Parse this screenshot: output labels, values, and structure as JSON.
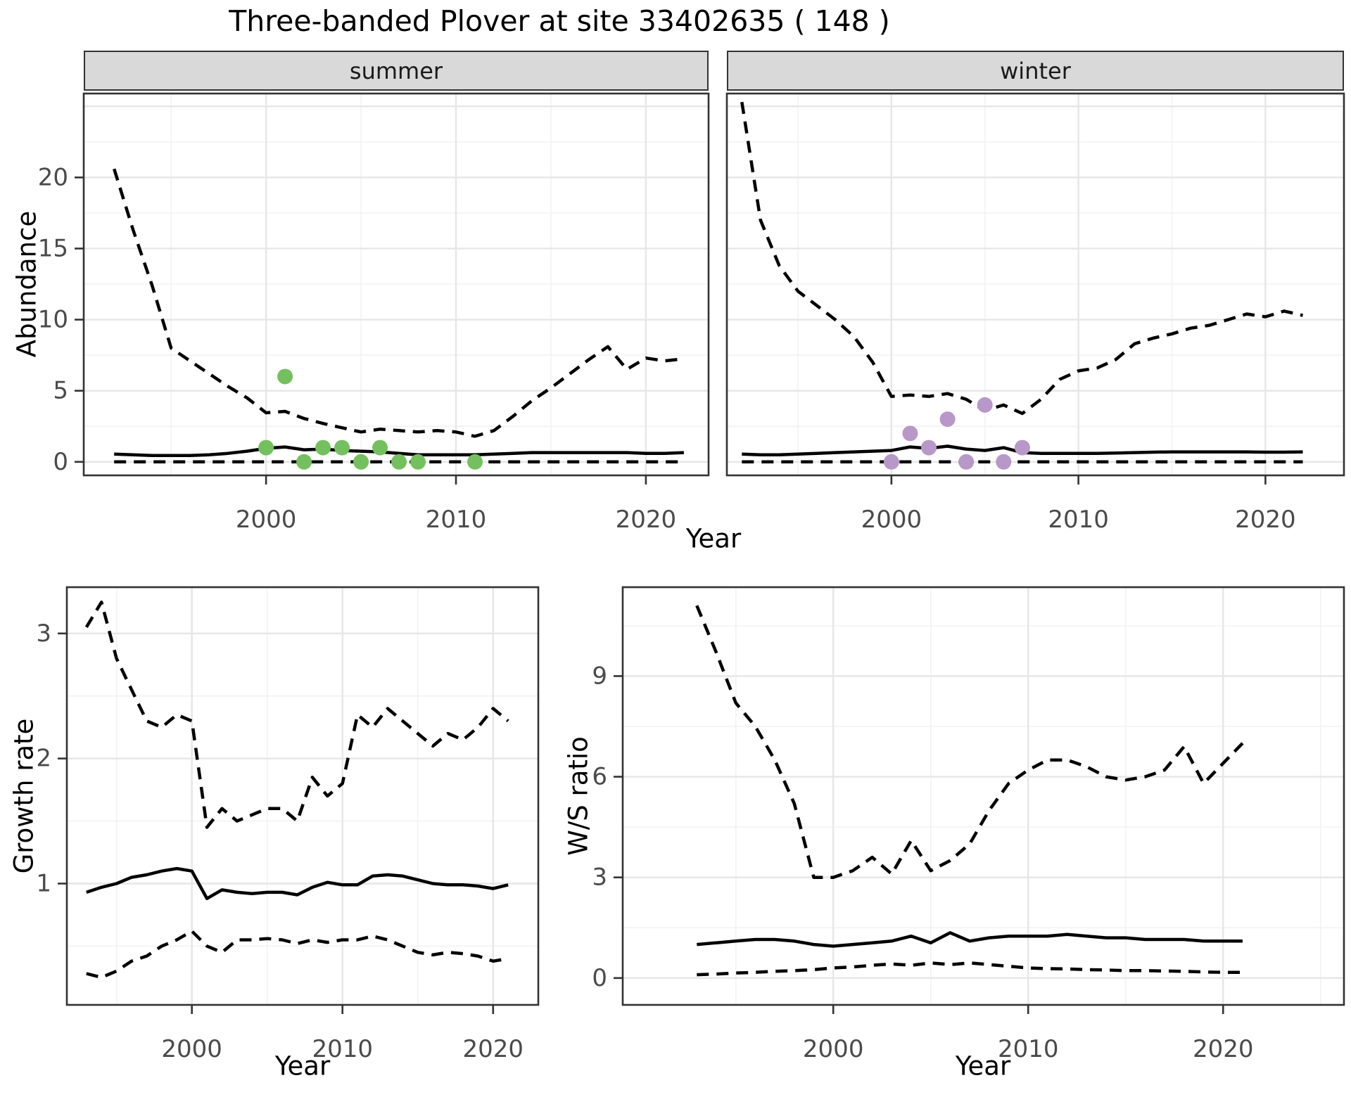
{
  "title": "Three-banded Plover at site 33402635 ( 148 )",
  "facets": {
    "summer": {
      "label": "summer"
    },
    "winter": {
      "label": "winter"
    }
  },
  "axis_titles": {
    "abundance": "Abundance",
    "year_top": "Year",
    "growth_rate": "Growth rate",
    "year_bottom_left": "Year",
    "ws_ratio": "W/S ratio",
    "year_bottom_right": "Year"
  },
  "colors": {
    "summer_points": "#75c05e",
    "winter_points": "#b897c9",
    "line": "#000000",
    "strip_bg": "#d9d9d9",
    "panel_border": "#333333",
    "grid_major": "#e6e6e6",
    "grid_minor": "#f2f2f2",
    "tick_text": "#4a4a4a"
  },
  "chart_data": [
    {
      "id": "abundance-summer",
      "type": "line",
      "facet_label": "summer",
      "title": "",
      "xlabel": "Year",
      "ylabel": "Abundance",
      "xlim": [
        1990.4,
        2023.3
      ],
      "ylim": [
        -0.95,
        25.9
      ],
      "x_ticks": [
        2000,
        2010,
        2020
      ],
      "x_minor": [
        1995,
        2005,
        2015
      ],
      "y_ticks": [
        0,
        5,
        10,
        15,
        20
      ],
      "y_major_extra": [
        25
      ],
      "y_minor": [
        2.5,
        7.5,
        12.5,
        17.5,
        22.5
      ],
      "x": [
        1992,
        1993,
        1994,
        1995,
        1996,
        1997,
        1998,
        1999,
        2000,
        2001,
        2002,
        2003,
        2004,
        2005,
        2006,
        2007,
        2008,
        2009,
        2010,
        2011,
        2012,
        2013,
        2014,
        2015,
        2016,
        2017,
        2018,
        2019,
        2020,
        2021,
        2022
      ],
      "series": [
        {
          "name": "upper-95ci",
          "style": "dashed",
          "values": [
            20.6,
            16.3,
            12.4,
            8.0,
            7.1,
            6.2,
            5.3,
            4.5,
            3.45,
            3.55,
            3.05,
            2.7,
            2.4,
            2.1,
            2.3,
            2.2,
            2.1,
            2.2,
            2.1,
            1.8,
            2.2,
            3.2,
            4.3,
            5.2,
            6.2,
            7.2,
            8.1,
            6.5,
            7.3,
            7.1,
            7.25
          ]
        },
        {
          "name": "median",
          "style": "solid",
          "values": [
            0.55,
            0.5,
            0.45,
            0.45,
            0.45,
            0.5,
            0.6,
            0.75,
            0.95,
            1.05,
            0.85,
            0.9,
            0.8,
            0.75,
            0.7,
            0.6,
            0.5,
            0.5,
            0.5,
            0.5,
            0.55,
            0.6,
            0.65,
            0.65,
            0.65,
            0.65,
            0.65,
            0.65,
            0.6,
            0.6,
            0.65
          ]
        },
        {
          "name": "lower-95ci",
          "style": "dashed",
          "values": [
            0,
            0,
            0,
            0,
            0,
            0,
            0,
            0,
            0,
            0,
            0,
            0,
            0,
            0,
            0,
            0,
            0,
            0,
            0,
            0,
            0,
            0,
            0,
            0,
            0,
            0,
            0,
            0,
            0,
            0,
            0
          ]
        }
      ],
      "points": {
        "name": "observed-counts",
        "color": "#75c05e",
        "data": [
          [
            2000,
            1
          ],
          [
            2001,
            6
          ],
          [
            2002,
            0
          ],
          [
            2003,
            1
          ],
          [
            2004,
            1
          ],
          [
            2005,
            0
          ],
          [
            2006,
            1
          ],
          [
            2007,
            0
          ],
          [
            2008,
            0
          ],
          [
            2011,
            0
          ]
        ]
      }
    },
    {
      "id": "abundance-winter",
      "type": "line",
      "facet_label": "winter",
      "title": "",
      "xlabel": "Year",
      "ylabel": "Abundance",
      "xlim": [
        1991.2,
        2024.2
      ],
      "ylim": [
        -0.95,
        25.9
      ],
      "x_ticks": [
        2000,
        2010,
        2020
      ],
      "x_minor": [
        1995,
        2005,
        2015
      ],
      "y_ticks": [
        0,
        5,
        10,
        15,
        20
      ],
      "y_major_extra": [
        25
      ],
      "y_minor": [
        2.5,
        7.5,
        12.5,
        17.5,
        22.5
      ],
      "y_labels_shown": false,
      "x": [
        1992,
        1993,
        1994,
        1995,
        1996,
        1997,
        1998,
        1999,
        2000,
        2001,
        2002,
        2003,
        2004,
        2005,
        2006,
        2007,
        2008,
        2009,
        2010,
        2011,
        2012,
        2013,
        2014,
        2015,
        2016,
        2017,
        2018,
        2019,
        2020,
        2021,
        2022
      ],
      "series": [
        {
          "name": "upper-95ci",
          "style": "dashed",
          "values": [
            25.3,
            17.0,
            13.8,
            12.0,
            11.0,
            10.0,
            8.8,
            7.0,
            4.6,
            4.7,
            4.6,
            4.8,
            4.4,
            3.6,
            4.0,
            3.4,
            4.4,
            5.8,
            6.4,
            6.6,
            7.2,
            8.3,
            8.7,
            9.0,
            9.4,
            9.6,
            10.0,
            10.4,
            10.2,
            10.6,
            10.3
          ]
        },
        {
          "name": "median",
          "style": "solid",
          "values": [
            0.55,
            0.5,
            0.5,
            0.55,
            0.6,
            0.65,
            0.7,
            0.75,
            0.8,
            1.05,
            0.95,
            1.1,
            0.9,
            0.8,
            1.0,
            0.65,
            0.6,
            0.6,
            0.6,
            0.6,
            0.62,
            0.65,
            0.68,
            0.7,
            0.7,
            0.7,
            0.7,
            0.7,
            0.68,
            0.68,
            0.7
          ]
        },
        {
          "name": "lower-95ci",
          "style": "dashed",
          "values": [
            0,
            0,
            0,
            0,
            0,
            0,
            0,
            0,
            0,
            0,
            0,
            0,
            0,
            0,
            0,
            0,
            0,
            0,
            0,
            0,
            0,
            0,
            0,
            0,
            0,
            0,
            0,
            0,
            0,
            0,
            0
          ]
        }
      ],
      "points": {
        "name": "observed-counts",
        "color": "#b897c9",
        "data": [
          [
            2000,
            0
          ],
          [
            2001,
            2
          ],
          [
            2002,
            1
          ],
          [
            2003,
            3
          ],
          [
            2004,
            0
          ],
          [
            2005,
            4
          ],
          [
            2006,
            0
          ],
          [
            2007,
            1
          ]
        ]
      }
    },
    {
      "id": "growth-rate",
      "type": "line",
      "facet_label": "",
      "title": "",
      "xlabel": "Year",
      "ylabel": "Growth rate",
      "xlim": [
        1991.7,
        2023.0
      ],
      "ylim": [
        0.03,
        3.37
      ],
      "x_ticks": [
        2000,
        2010,
        2020
      ],
      "x_minor": [
        1995,
        2005,
        2015
      ],
      "y_ticks": [
        1,
        2,
        3
      ],
      "y_major_extra": [],
      "y_minor": [
        0.5,
        1.5,
        2.5
      ],
      "x": [
        1993,
        1994,
        1995,
        1996,
        1997,
        1998,
        1999,
        2000,
        2001,
        2002,
        2003,
        2004,
        2005,
        2006,
        2007,
        2008,
        2009,
        2010,
        2011,
        2012,
        2013,
        2014,
        2015,
        2016,
        2017,
        2018,
        2019,
        2020,
        2021
      ],
      "series": [
        {
          "name": "upper-95ci",
          "style": "dashed",
          "values": [
            3.05,
            3.25,
            2.8,
            2.55,
            2.3,
            2.25,
            2.35,
            2.3,
            1.45,
            1.6,
            1.5,
            1.55,
            1.6,
            1.6,
            1.5,
            1.85,
            1.7,
            1.8,
            2.35,
            2.25,
            2.4,
            2.3,
            2.2,
            2.1,
            2.2,
            2.15,
            2.25,
            2.4,
            2.3
          ]
        },
        {
          "name": "median",
          "style": "solid",
          "values": [
            0.93,
            0.97,
            1.0,
            1.05,
            1.07,
            1.1,
            1.12,
            1.1,
            0.88,
            0.95,
            0.93,
            0.92,
            0.93,
            0.93,
            0.91,
            0.97,
            1.01,
            0.99,
            0.99,
            1.06,
            1.07,
            1.06,
            1.03,
            1.0,
            0.99,
            0.99,
            0.98,
            0.96,
            0.99
          ]
        },
        {
          "name": "lower-95ci",
          "style": "dashed",
          "values": [
            0.28,
            0.25,
            0.3,
            0.38,
            0.42,
            0.5,
            0.55,
            0.62,
            0.5,
            0.45,
            0.55,
            0.55,
            0.56,
            0.55,
            0.52,
            0.55,
            0.53,
            0.55,
            0.55,
            0.58,
            0.55,
            0.5,
            0.45,
            0.43,
            0.45,
            0.44,
            0.42,
            0.38,
            0.4
          ]
        }
      ],
      "points": null
    },
    {
      "id": "ws-ratio",
      "type": "line",
      "facet_label": "",
      "title": "",
      "xlabel": "Year",
      "ylabel": "W/S ratio",
      "xlim": [
        1989.2,
        2026.2
      ],
      "ylim": [
        -0.8,
        11.65
      ],
      "x_ticks": [
        2000,
        2010,
        2020
      ],
      "x_minor": [
        1995,
        2005,
        2015,
        2025
      ],
      "y_ticks": [
        0,
        3,
        6,
        9
      ],
      "y_major_extra": [],
      "y_minor": [
        1.5,
        4.5,
        7.5,
        10.5
      ],
      "x": [
        1993,
        1994,
        1995,
        1996,
        1997,
        1998,
        1999,
        2000,
        2001,
        2002,
        2003,
        2004,
        2005,
        2006,
        2007,
        2008,
        2009,
        2010,
        2011,
        2012,
        2013,
        2014,
        2015,
        2016,
        2017,
        2018,
        2019,
        2020,
        2021
      ],
      "series": [
        {
          "name": "upper-95ci",
          "style": "dashed",
          "values": [
            11.1,
            9.7,
            8.2,
            7.5,
            6.5,
            5.2,
            3.0,
            3.0,
            3.2,
            3.6,
            3.1,
            4.1,
            3.2,
            3.5,
            4.0,
            5.0,
            5.8,
            6.2,
            6.5,
            6.5,
            6.3,
            6.0,
            5.9,
            6.0,
            6.2,
            6.9,
            5.8,
            6.4,
            7.0
          ]
        },
        {
          "name": "median",
          "style": "solid",
          "values": [
            1.0,
            1.05,
            1.1,
            1.15,
            1.15,
            1.1,
            1.0,
            0.95,
            1.0,
            1.05,
            1.1,
            1.25,
            1.05,
            1.35,
            1.1,
            1.2,
            1.25,
            1.25,
            1.25,
            1.3,
            1.25,
            1.2,
            1.2,
            1.15,
            1.15,
            1.15,
            1.1,
            1.1,
            1.1
          ]
        },
        {
          "name": "lower-95ci",
          "style": "dashed",
          "values": [
            0.1,
            0.12,
            0.15,
            0.17,
            0.2,
            0.22,
            0.25,
            0.3,
            0.33,
            0.38,
            0.42,
            0.38,
            0.45,
            0.4,
            0.45,
            0.4,
            0.35,
            0.3,
            0.28,
            0.27,
            0.25,
            0.24,
            0.22,
            0.22,
            0.21,
            0.2,
            0.18,
            0.17,
            0.17
          ]
        }
      ],
      "points": null
    }
  ]
}
